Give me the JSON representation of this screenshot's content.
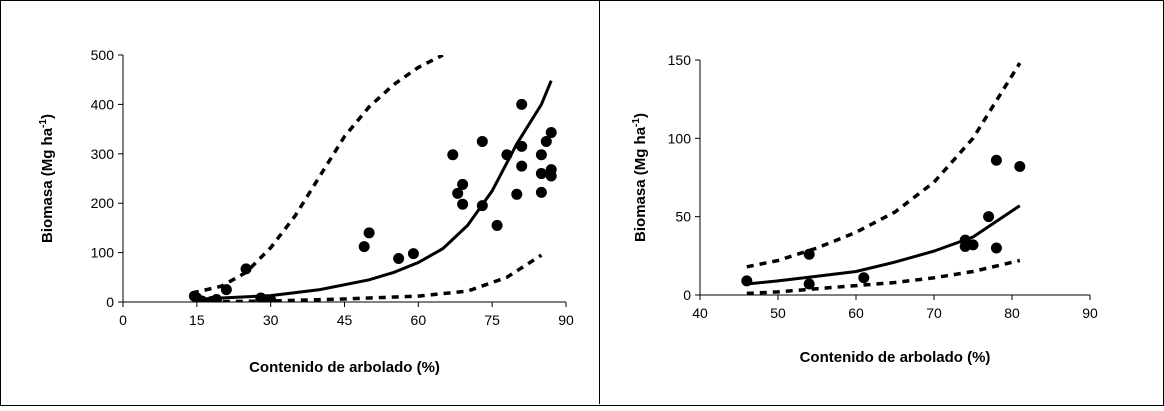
{
  "chart_data": [
    {
      "type": "scatter",
      "xlabel": "Contenido de arbolado (%)",
      "ylabel": "Biomasa (Mg ha",
      "ylabel_sup": "-1",
      "ylabel_end": ")",
      "xlim": [
        0,
        90
      ],
      "ylim": [
        0,
        500
      ],
      "xticks": [
        "0",
        "15",
        "30",
        "45",
        "60",
        "75",
        "90"
      ],
      "yticks": [
        "0",
        "100",
        "200",
        "300",
        "400",
        "500"
      ],
      "grid": false,
      "series": [
        {
          "kind": "points",
          "points": [
            [
              14.5,
              12
            ],
            [
              15,
              8
            ],
            [
              16,
              2
            ],
            [
              18,
              1
            ],
            [
              19,
              5
            ],
            [
              21,
              25
            ],
            [
              25,
              67
            ],
            [
              28,
              8
            ],
            [
              30,
              4
            ],
            [
              49,
              112
            ],
            [
              50,
              140
            ],
            [
              56,
              88
            ],
            [
              59,
              98
            ],
            [
              67,
              298
            ],
            [
              68,
              220
            ],
            [
              69,
              238
            ],
            [
              69,
              198
            ],
            [
              73,
              195
            ],
            [
              73,
              325
            ],
            [
              76,
              155
            ],
            [
              78,
              298
            ],
            [
              80,
              218
            ],
            [
              81,
              400
            ],
            [
              81,
              315
            ],
            [
              81,
              275
            ],
            [
              85,
              298
            ],
            [
              85,
              260
            ],
            [
              85,
              222
            ],
            [
              86,
              325
            ],
            [
              87,
              343
            ],
            [
              87,
              268
            ],
            [
              87,
              255
            ]
          ]
        },
        {
          "kind": "line",
          "style": "solid",
          "points": [
            [
              14,
              5
            ],
            [
              20,
              8
            ],
            [
              30,
              13
            ],
            [
              40,
              25
            ],
            [
              50,
              45
            ],
            [
              55,
              60
            ],
            [
              60,
              80
            ],
            [
              65,
              108
            ],
            [
              70,
              155
            ],
            [
              75,
              225
            ],
            [
              80,
              320
            ],
            [
              85,
              400
            ],
            [
              87,
              448
            ]
          ]
        },
        {
          "kind": "line",
          "style": "dashed",
          "points": [
            [
              14,
              18
            ],
            [
              20,
              32
            ],
            [
              25,
              60
            ],
            [
              30,
              110
            ],
            [
              35,
              175
            ],
            [
              40,
              255
            ],
            [
              45,
              335
            ],
            [
              50,
              395
            ],
            [
              55,
              440
            ],
            [
              60,
              475
            ],
            [
              65,
              500
            ]
          ]
        },
        {
          "kind": "line",
          "style": "dashed",
          "points": [
            [
              15,
              0
            ],
            [
              30,
              2
            ],
            [
              45,
              6
            ],
            [
              60,
              12
            ],
            [
              70,
              22
            ],
            [
              78,
              50
            ],
            [
              85,
              95
            ]
          ]
        }
      ]
    },
    {
      "type": "scatter",
      "xlabel": "Contenido de arbolado (%)",
      "ylabel": "Biomasa (Mg ha",
      "ylabel_sup": "-1",
      "ylabel_end": ")",
      "xlim": [
        40,
        90
      ],
      "ylim": [
        0,
        150
      ],
      "xticks": [
        "40",
        "50",
        "60",
        "70",
        "80",
        "90"
      ],
      "yticks": [
        "0",
        "50",
        "100",
        "150"
      ],
      "grid": false,
      "series": [
        {
          "kind": "points",
          "points": [
            [
              46,
              9
            ],
            [
              54,
              26
            ],
            [
              54,
              7
            ],
            [
              61,
              11
            ],
            [
              74,
              31
            ],
            [
              74,
              35
            ],
            [
              75,
              32
            ],
            [
              77,
              50
            ],
            [
              78,
              30
            ],
            [
              78,
              86
            ],
            [
              81,
              82
            ]
          ]
        },
        {
          "kind": "line",
          "style": "solid",
          "points": [
            [
              46,
              7
            ],
            [
              50,
              9
            ],
            [
              55,
              12
            ],
            [
              60,
              15
            ],
            [
              65,
              21
            ],
            [
              70,
              28
            ],
            [
              75,
              37
            ],
            [
              81,
              57
            ]
          ]
        },
        {
          "kind": "line",
          "style": "dashed",
          "points": [
            [
              46,
              18
            ],
            [
              50,
              22
            ],
            [
              55,
              30
            ],
            [
              60,
              40
            ],
            [
              65,
              53
            ],
            [
              70,
              72
            ],
            [
              75,
              100
            ],
            [
              81,
              148
            ]
          ]
        },
        {
          "kind": "line",
          "style": "dashed",
          "points": [
            [
              46,
              1
            ],
            [
              50,
              2
            ],
            [
              55,
              4
            ],
            [
              60,
              6
            ],
            [
              65,
              8
            ],
            [
              70,
              11
            ],
            [
              75,
              15
            ],
            [
              81,
              22
            ]
          ]
        }
      ]
    }
  ]
}
